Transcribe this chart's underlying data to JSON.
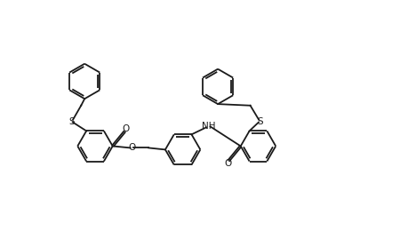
{
  "background_color": "#ffffff",
  "line_color": "#1a1a1a",
  "line_width": 1.3,
  "dbo": 0.12,
  "fig_width": 4.59,
  "fig_height": 2.69,
  "dpi": 100,
  "xlim": [
    0,
    18
  ],
  "ylim": [
    0,
    10.5
  ],
  "font_size": 7.5,
  "label_S": "S",
  "label_O_carbonyl_left": "O",
  "label_O_ester": "O",
  "label_NH": "NH",
  "label_S_right": "S",
  "label_O_amide": "O"
}
